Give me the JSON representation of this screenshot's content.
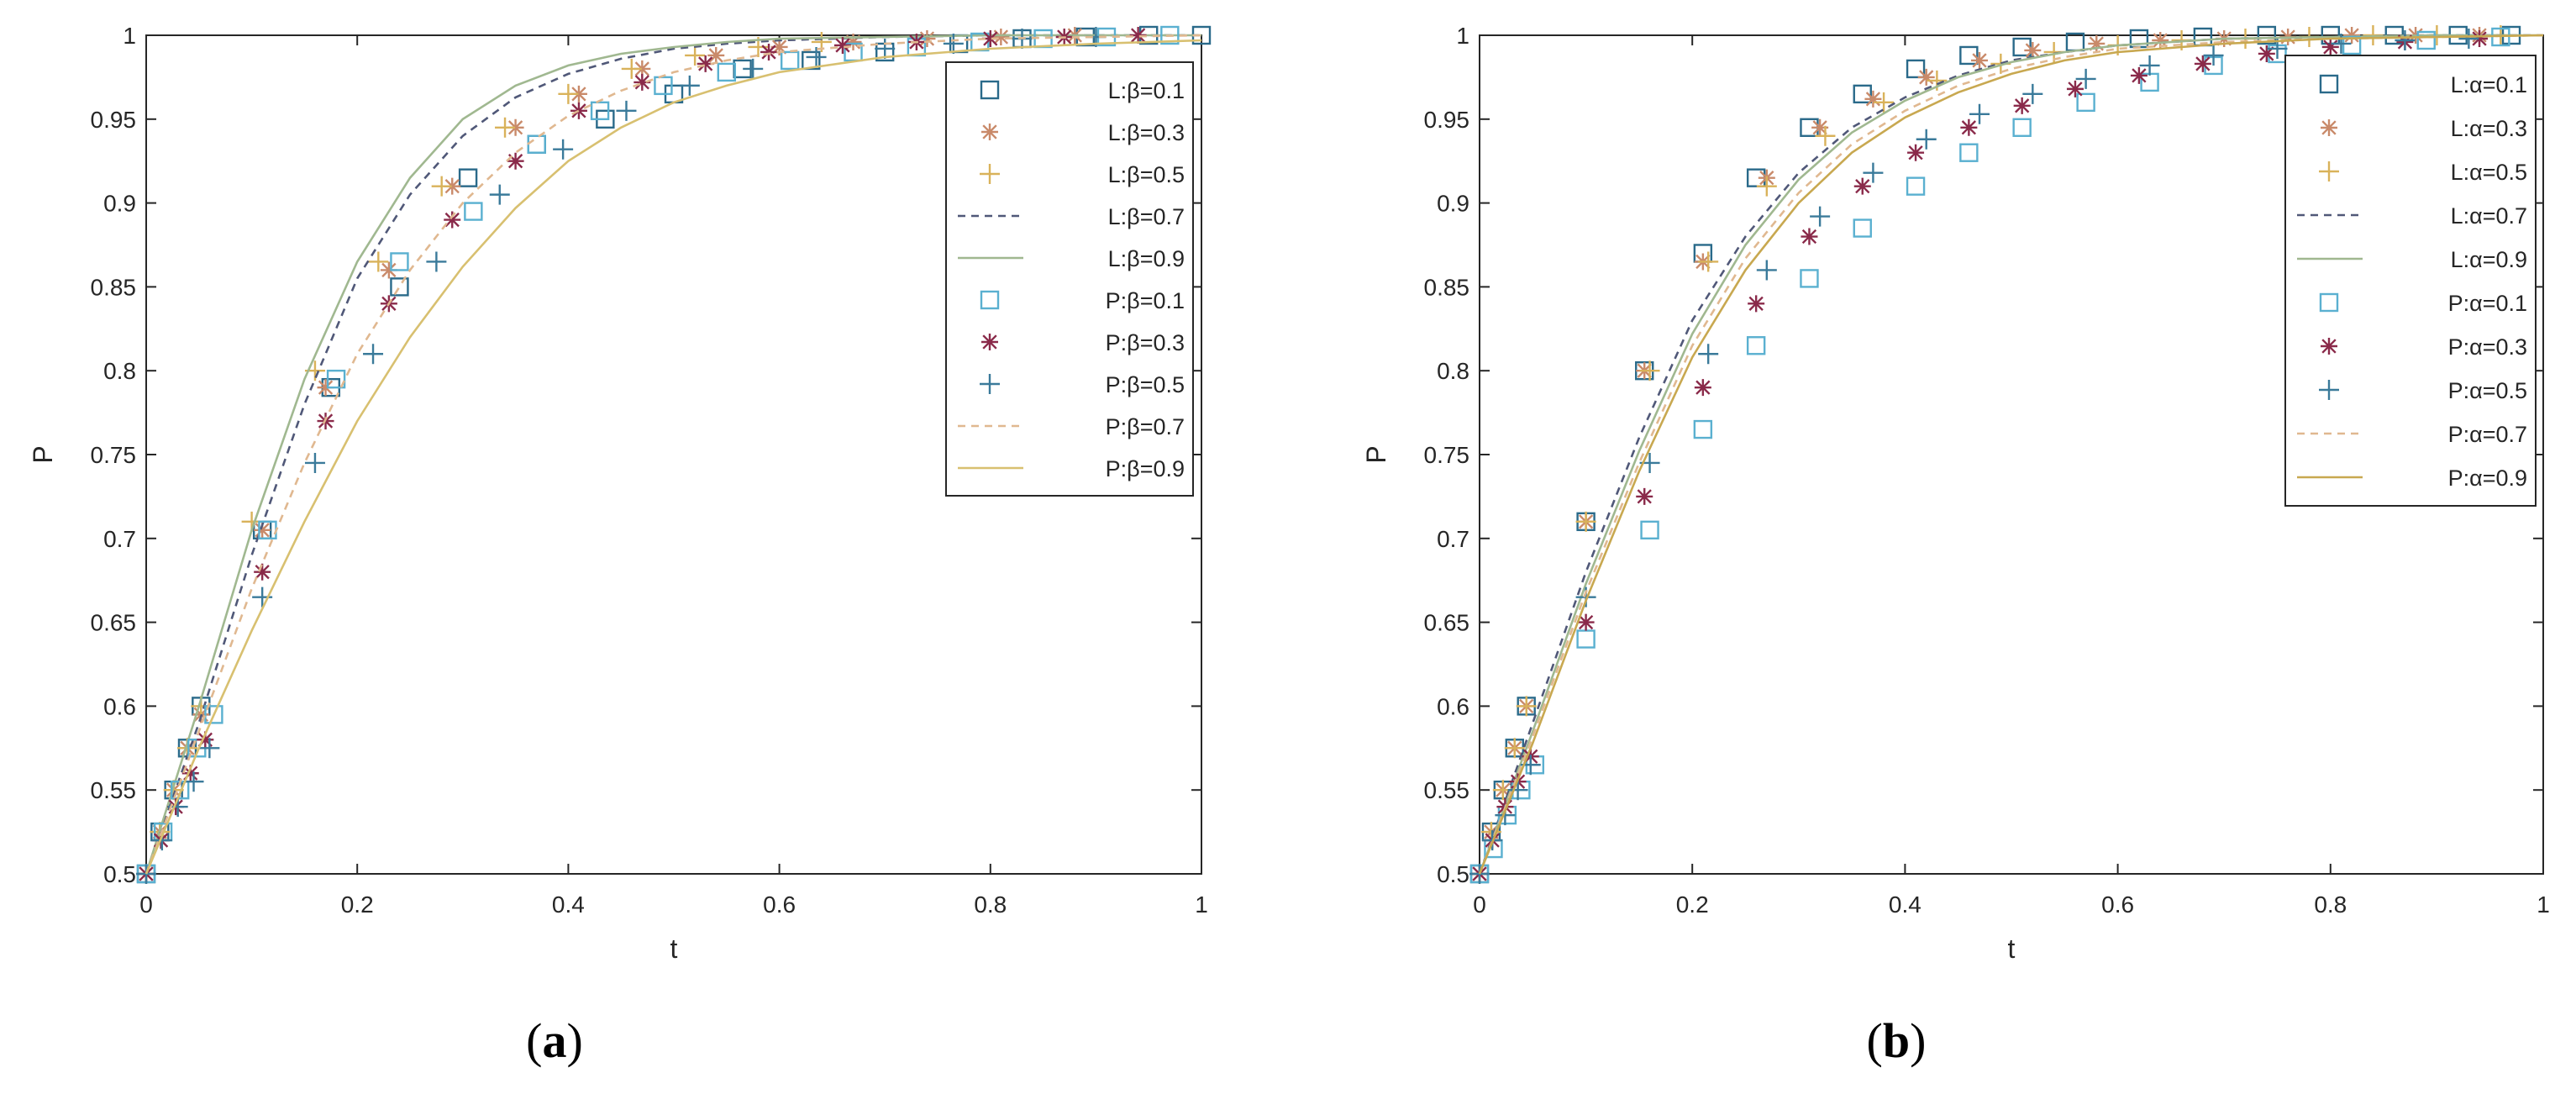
{
  "chart_data": [
    {
      "type": "line",
      "caption": "(a)",
      "xlabel": "t",
      "ylabel": "P",
      "xlim": [
        0,
        1
      ],
      "ylim": [
        0.5,
        1
      ],
      "xticks": [
        "0",
        "0.2",
        "0.4",
        "0.6",
        "0.8",
        "1"
      ],
      "yticks": [
        "0.5",
        "0.55",
        "0.6",
        "0.65",
        "0.7",
        "0.75",
        "0.8",
        "0.85",
        "0.9",
        "0.95",
        "1"
      ],
      "legend_position": "right",
      "series": [
        {
          "name": "L:β=0.1",
          "marker": "square",
          "color": "#2a6a8a",
          "x": [
            0,
            0.013,
            0.026,
            0.039,
            0.052,
            0.11,
            0.175,
            0.24,
            0.305,
            0.37,
            0.435,
            0.5,
            0.565,
            0.63,
            0.7,
            0.77,
            0.83,
            0.89,
            0.95,
            1.0
          ],
          "y": [
            0.5,
            0.525,
            0.55,
            0.575,
            0.6,
            0.705,
            0.79,
            0.85,
            0.915,
            0.935,
            0.95,
            0.965,
            0.98,
            0.985,
            0.99,
            0.995,
            0.998,
            0.999,
            1.0,
            1.0
          ]
        },
        {
          "name": "L:β=0.3",
          "marker": "asterisk",
          "color": "#c98a6a",
          "x": [
            0,
            0.013,
            0.026,
            0.039,
            0.052,
            0.11,
            0.17,
            0.23,
            0.29,
            0.35,
            0.41,
            0.47,
            0.54,
            0.6,
            0.67,
            0.74,
            0.81,
            0.88
          ],
          "y": [
            0.5,
            0.525,
            0.55,
            0.575,
            0.595,
            0.705,
            0.79,
            0.86,
            0.91,
            0.945,
            0.965,
            0.98,
            0.988,
            0.993,
            0.996,
            0.998,
            0.999,
            1.0
          ]
        },
        {
          "name": "L:β=0.5",
          "marker": "plus",
          "color": "#d9b25a",
          "x": [
            0,
            0.013,
            0.026,
            0.039,
            0.052,
            0.1,
            0.16,
            0.22,
            0.28,
            0.34,
            0.4,
            0.46,
            0.52,
            0.58,
            0.64
          ],
          "y": [
            0.5,
            0.525,
            0.55,
            0.575,
            0.6,
            0.71,
            0.8,
            0.865,
            0.91,
            0.945,
            0.965,
            0.98,
            0.988,
            0.993,
            0.996
          ]
        },
        {
          "name": "L:β=0.7",
          "marker": "dashed",
          "color": "#505878",
          "x": [
            0,
            0.05,
            0.1,
            0.15,
            0.2,
            0.25,
            0.3,
            0.35,
            0.4,
            0.45,
            0.5,
            0.55,
            0.6,
            0.7,
            0.8,
            0.9,
            1.0
          ],
          "y": [
            0.5,
            0.59,
            0.69,
            0.78,
            0.855,
            0.905,
            0.94,
            0.963,
            0.977,
            0.986,
            0.992,
            0.995,
            0.997,
            0.999,
            1.0,
            1.0,
            1.0
          ]
        },
        {
          "name": "L:β=0.9",
          "marker": "solid",
          "color": "#a0b890",
          "x": [
            0,
            0.05,
            0.1,
            0.15,
            0.2,
            0.25,
            0.3,
            0.35,
            0.4,
            0.45,
            0.5,
            0.55,
            0.6,
            0.7,
            0.8,
            0.9,
            1.0
          ],
          "y": [
            0.5,
            0.6,
            0.705,
            0.795,
            0.865,
            0.915,
            0.95,
            0.97,
            0.982,
            0.989,
            0.993,
            0.996,
            0.998,
            0.999,
            1.0,
            1.0,
            1.0
          ]
        },
        {
          "name": "P:β=0.1",
          "marker": "square",
          "color": "#5ab0d0",
          "x": [
            0,
            0.016,
            0.032,
            0.048,
            0.064,
            0.115,
            0.18,
            0.24,
            0.31,
            0.37,
            0.43,
            0.49,
            0.55,
            0.61,
            0.67,
            0.73,
            0.79,
            0.85,
            0.91,
            0.97
          ],
          "y": [
            0.5,
            0.525,
            0.55,
            0.575,
            0.595,
            0.705,
            0.795,
            0.865,
            0.895,
            0.935,
            0.955,
            0.97,
            0.978,
            0.985,
            0.99,
            0.993,
            0.996,
            0.998,
            0.999,
            1.0
          ]
        },
        {
          "name": "P:β=0.3",
          "marker": "asterisk",
          "color": "#8a2a4a",
          "x": [
            0,
            0.014,
            0.028,
            0.042,
            0.056,
            0.11,
            0.17,
            0.23,
            0.29,
            0.35,
            0.41,
            0.47,
            0.53,
            0.59,
            0.66,
            0.73,
            0.8,
            0.87,
            0.94
          ],
          "y": [
            0.5,
            0.52,
            0.54,
            0.56,
            0.58,
            0.68,
            0.77,
            0.84,
            0.89,
            0.925,
            0.955,
            0.972,
            0.983,
            0.99,
            0.994,
            0.996,
            0.998,
            0.999,
            1.0
          ]
        },
        {
          "name": "P:β=0.5",
          "marker": "plus",
          "color": "#3a7a9a",
          "x": [
            0,
            0.015,
            0.03,
            0.045,
            0.06,
            0.11,
            0.16,
            0.215,
            0.275,
            0.335,
            0.395,
            0.455,
            0.515,
            0.575,
            0.635,
            0.7,
            0.765,
            0.83,
            0.9
          ],
          "y": [
            0.5,
            0.52,
            0.54,
            0.555,
            0.575,
            0.665,
            0.745,
            0.81,
            0.865,
            0.905,
            0.932,
            0.955,
            0.97,
            0.98,
            0.987,
            0.992,
            0.995,
            0.998,
            0.999
          ]
        },
        {
          "name": "P:β=0.7",
          "marker": "dashed",
          "color": "#e0b890",
          "x": [
            0,
            0.05,
            0.1,
            0.15,
            0.2,
            0.25,
            0.3,
            0.35,
            0.4,
            0.45,
            0.5,
            0.55,
            0.6,
            0.7,
            0.8,
            0.9,
            1.0
          ],
          "y": [
            0.5,
            0.585,
            0.67,
            0.745,
            0.81,
            0.86,
            0.9,
            0.93,
            0.952,
            0.967,
            0.978,
            0.985,
            0.99,
            0.995,
            0.998,
            0.999,
            1.0
          ]
        },
        {
          "name": "P:β=0.9",
          "marker": "solid",
          "color": "#d8c070",
          "x": [
            0,
            0.05,
            0.1,
            0.15,
            0.2,
            0.25,
            0.3,
            0.35,
            0.4,
            0.45,
            0.5,
            0.55,
            0.6,
            0.7,
            0.8,
            0.9,
            1.0
          ],
          "y": [
            0.5,
            0.575,
            0.645,
            0.71,
            0.77,
            0.82,
            0.862,
            0.897,
            0.925,
            0.945,
            0.96,
            0.97,
            0.978,
            0.987,
            0.992,
            0.995,
            0.997
          ]
        }
      ]
    },
    {
      "type": "line",
      "caption": "(b)",
      "xlabel": "t",
      "ylabel": "P",
      "xlim": [
        0,
        1
      ],
      "ylim": [
        0.5,
        1
      ],
      "xticks": [
        "0",
        "0.2",
        "0.4",
        "0.6",
        "0.8",
        "1"
      ],
      "yticks": [
        "0.5",
        "0.55",
        "0.6",
        "0.65",
        "0.7",
        "0.75",
        "0.8",
        "0.85",
        "0.9",
        "0.95",
        "1"
      ],
      "legend_position": "right",
      "series": [
        {
          "name": "L:α=0.1",
          "marker": "square",
          "color": "#2a6a8a",
          "x": [
            0,
            0.011,
            0.022,
            0.033,
            0.044,
            0.1,
            0.155,
            0.21,
            0.26,
            0.31,
            0.36,
            0.41,
            0.46,
            0.51,
            0.56,
            0.62,
            0.68,
            0.74,
            0.8,
            0.86,
            0.92,
            0.97
          ],
          "y": [
            0.5,
            0.525,
            0.55,
            0.575,
            0.6,
            0.71,
            0.8,
            0.87,
            0.915,
            0.945,
            0.965,
            0.98,
            0.988,
            0.993,
            0.996,
            0.998,
            0.999,
            1.0,
            1.0,
            1.0,
            1.0,
            1.0
          ]
        },
        {
          "name": "L:α=0.3",
          "marker": "asterisk",
          "color": "#c98a6a",
          "x": [
            0,
            0.011,
            0.022,
            0.033,
            0.044,
            0.1,
            0.155,
            0.21,
            0.27,
            0.32,
            0.37,
            0.42,
            0.47,
            0.52,
            0.58,
            0.64,
            0.7,
            0.76,
            0.82,
            0.88,
            0.94
          ],
          "y": [
            0.5,
            0.525,
            0.55,
            0.575,
            0.6,
            0.71,
            0.8,
            0.865,
            0.915,
            0.945,
            0.962,
            0.975,
            0.985,
            0.991,
            0.995,
            0.997,
            0.998,
            0.999,
            1.0,
            1.0,
            1.0
          ]
        },
        {
          "name": "L:α=0.5",
          "marker": "plus",
          "color": "#d9b25a",
          "x": [
            0,
            0.011,
            0.022,
            0.033,
            0.044,
            0.1,
            0.16,
            0.215,
            0.27,
            0.325,
            0.38,
            0.43,
            0.49,
            0.54,
            0.6,
            0.66,
            0.72,
            0.78,
            0.84,
            0.9,
            0.96
          ],
          "y": [
            0.5,
            0.525,
            0.55,
            0.575,
            0.6,
            0.71,
            0.8,
            0.865,
            0.91,
            0.94,
            0.96,
            0.973,
            0.983,
            0.99,
            0.994,
            0.997,
            0.998,
            0.999,
            1.0,
            1.0,
            1.0
          ]
        },
        {
          "name": "L:α=0.7",
          "marker": "dashed",
          "color": "#505878",
          "x": [
            0,
            0.05,
            0.1,
            0.15,
            0.2,
            0.25,
            0.3,
            0.35,
            0.4,
            0.45,
            0.5,
            0.55,
            0.6,
            0.7,
            0.8,
            0.9,
            1.0
          ],
          "y": [
            0.5,
            0.59,
            0.68,
            0.76,
            0.83,
            0.88,
            0.918,
            0.945,
            0.963,
            0.976,
            0.985,
            0.99,
            0.994,
            0.998,
            0.999,
            1.0,
            1.0
          ]
        },
        {
          "name": "L:α=0.9",
          "marker": "solid",
          "color": "#a0b890",
          "x": [
            0,
            0.05,
            0.1,
            0.15,
            0.2,
            0.25,
            0.3,
            0.35,
            0.4,
            0.45,
            0.5,
            0.55,
            0.6,
            0.7,
            0.8,
            0.9,
            1.0
          ],
          "y": [
            0.5,
            0.585,
            0.673,
            0.752,
            0.822,
            0.875,
            0.914,
            0.942,
            0.961,
            0.975,
            0.984,
            0.99,
            0.994,
            0.998,
            0.999,
            1.0,
            1.0
          ]
        },
        {
          "name": "P:α=0.1",
          "marker": "square",
          "color": "#5ab0d0",
          "x": [
            0,
            0.013,
            0.026,
            0.039,
            0.052,
            0.1,
            0.16,
            0.21,
            0.26,
            0.31,
            0.36,
            0.41,
            0.46,
            0.51,
            0.57,
            0.63,
            0.69,
            0.75,
            0.82,
            0.89,
            0.96
          ],
          "y": [
            0.5,
            0.515,
            0.535,
            0.55,
            0.565,
            0.64,
            0.705,
            0.765,
            0.815,
            0.855,
            0.885,
            0.91,
            0.93,
            0.945,
            0.96,
            0.972,
            0.982,
            0.989,
            0.994,
            0.997,
            0.999
          ]
        },
        {
          "name": "P:α=0.3",
          "marker": "asterisk",
          "color": "#8a2a4a",
          "x": [
            0,
            0.012,
            0.024,
            0.036,
            0.048,
            0.1,
            0.155,
            0.21,
            0.26,
            0.31,
            0.36,
            0.41,
            0.46,
            0.51,
            0.56,
            0.62,
            0.68,
            0.74,
            0.8,
            0.87,
            0.94
          ],
          "y": [
            0.5,
            0.52,
            0.54,
            0.555,
            0.57,
            0.65,
            0.725,
            0.79,
            0.84,
            0.88,
            0.91,
            0.93,
            0.945,
            0.958,
            0.968,
            0.976,
            0.983,
            0.989,
            0.993,
            0.996,
            0.998
          ]
        },
        {
          "name": "P:α=0.5",
          "marker": "plus",
          "color": "#3a7a9a",
          "x": [
            0,
            0.012,
            0.024,
            0.036,
            0.048,
            0.1,
            0.16,
            0.215,
            0.27,
            0.32,
            0.37,
            0.42,
            0.47,
            0.52,
            0.57,
            0.63,
            0.69,
            0.75,
            0.81,
            0.87,
            0.93
          ],
          "y": [
            0.5,
            0.52,
            0.535,
            0.55,
            0.565,
            0.665,
            0.745,
            0.81,
            0.86,
            0.892,
            0.918,
            0.938,
            0.953,
            0.965,
            0.974,
            0.982,
            0.988,
            0.992,
            0.995,
            0.997,
            0.998
          ]
        },
        {
          "name": "P:α=0.7",
          "marker": "dashed",
          "color": "#e0b890",
          "x": [
            0,
            0.05,
            0.1,
            0.15,
            0.2,
            0.25,
            0.3,
            0.35,
            0.4,
            0.45,
            0.5,
            0.55,
            0.6,
            0.7,
            0.8,
            0.9,
            1.0
          ],
          "y": [
            0.5,
            0.582,
            0.668,
            0.745,
            0.815,
            0.867,
            0.906,
            0.935,
            0.955,
            0.97,
            0.98,
            0.987,
            0.992,
            0.996,
            0.998,
            0.999,
            1.0
          ]
        },
        {
          "name": "P:α=0.9",
          "marker": "solid",
          "color": "#c8a850",
          "x": [
            0,
            0.05,
            0.1,
            0.15,
            0.2,
            0.25,
            0.3,
            0.35,
            0.4,
            0.45,
            0.5,
            0.55,
            0.6,
            0.7,
            0.8,
            0.9,
            1.0
          ],
          "y": [
            0.5,
            0.578,
            0.663,
            0.74,
            0.808,
            0.86,
            0.9,
            0.93,
            0.951,
            0.966,
            0.977,
            0.985,
            0.99,
            0.995,
            0.998,
            0.999,
            1.0
          ]
        }
      ]
    }
  ]
}
